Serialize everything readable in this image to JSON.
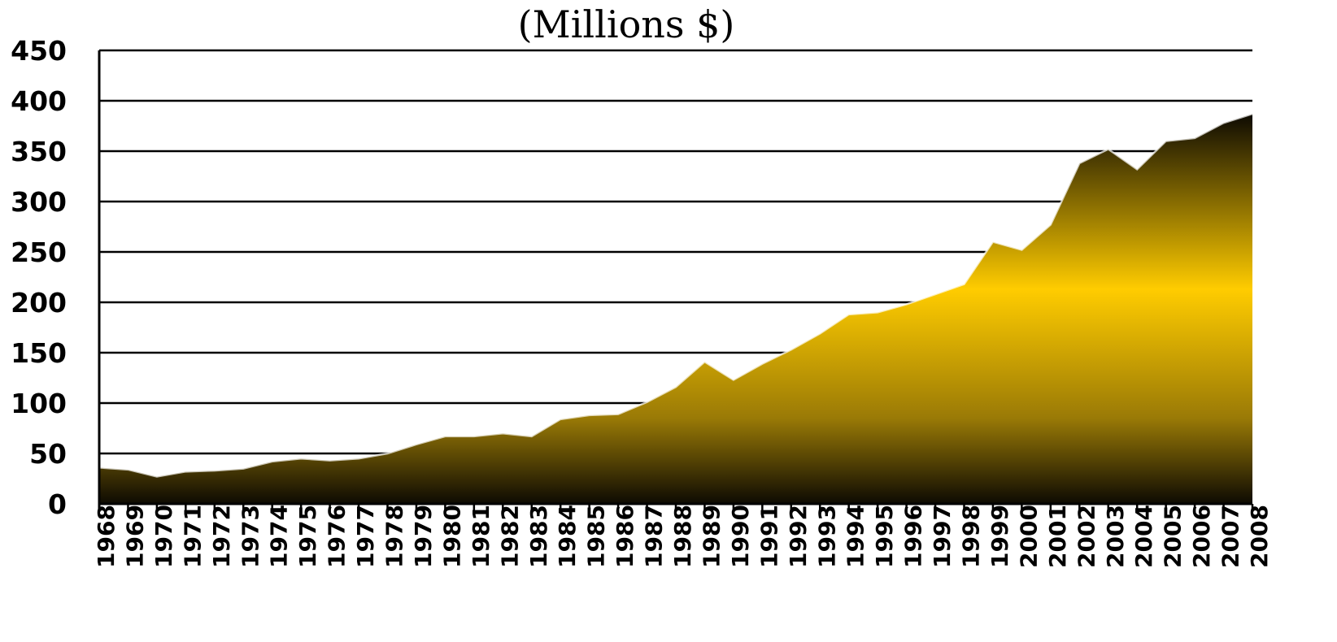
{
  "chart_data": {
    "type": "area",
    "title": "(Millions $)",
    "xlabel": "",
    "ylabel": "",
    "ylim": [
      0,
      450
    ],
    "yticks": [
      0,
      50,
      100,
      150,
      200,
      250,
      300,
      350,
      400,
      450
    ],
    "grid": true,
    "categories": [
      "1968",
      "1969",
      "1970",
      "1971",
      "1972",
      "1973",
      "1974",
      "1975",
      "1976",
      "1977",
      "1978",
      "1979",
      "1980",
      "1981",
      "1982",
      "1983",
      "1984",
      "1985",
      "1986",
      "1987",
      "1988",
      "1989",
      "1990",
      "1991",
      "1992",
      "1993",
      "1994",
      "1995",
      "1996",
      "1997",
      "1998",
      "1999",
      "2000",
      "2001",
      "2002",
      "2003",
      "2004",
      "2005",
      "2006",
      "2007",
      "2008"
    ],
    "series": [
      {
        "values": [
          36,
          34,
          27,
          32,
          33,
          35,
          42,
          45,
          43,
          45,
          50,
          59,
          67,
          67,
          70,
          67,
          84,
          88,
          89,
          101,
          116,
          141,
          123,
          139,
          153,
          169,
          188,
          190,
          198,
          208,
          218,
          260,
          252,
          277,
          338,
          352,
          332,
          360,
          363,
          378,
          387
        ]
      }
    ],
    "colors": {
      "fill_dark": "#0d0a02",
      "fill_mid": "#9a7a06",
      "fill_bright": "#ffcc00",
      "outline": "#000000",
      "grid": "#000000"
    }
  }
}
